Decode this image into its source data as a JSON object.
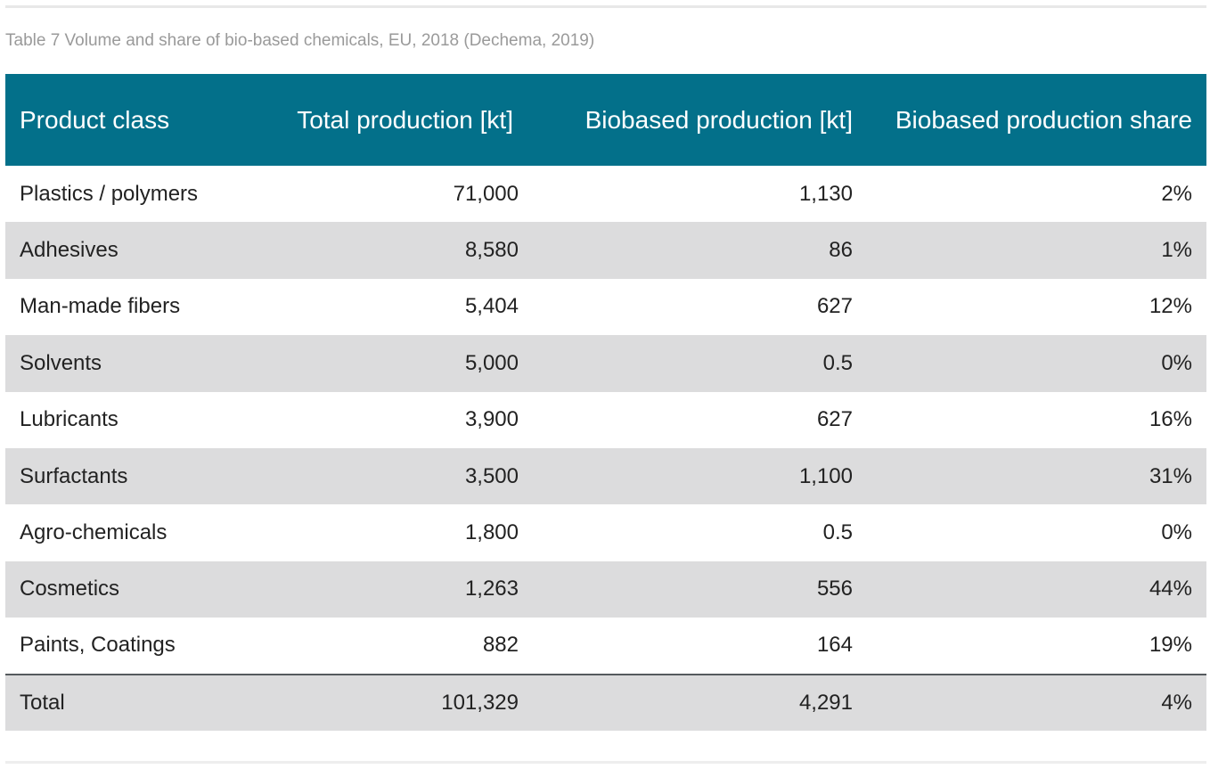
{
  "caption": "Table 7 Volume and share of bio-based chemicals, EU, 2018 (Dechema, 2019)",
  "table": {
    "headers": [
      "Product class",
      "Total production [kt]",
      "Biobased production [kt]",
      "Biobased production share"
    ],
    "rows": [
      [
        "Plastics / polymers",
        "71,000",
        "1,130",
        "2%"
      ],
      [
        "Adhesives",
        "8,580",
        "86",
        "1%"
      ],
      [
        "Man-made fibers",
        "5,404",
        "627",
        "12%"
      ],
      [
        "Solvents",
        "5,000",
        "0.5",
        "0%"
      ],
      [
        "Lubricants",
        "3,900",
        "627",
        "16%"
      ],
      [
        "Surfactants",
        "3,500",
        "1,100",
        "31%"
      ],
      [
        "Agro-chemicals",
        "1,800",
        "0.5",
        "0%"
      ],
      [
        "Cosmetics",
        "1,263",
        "556",
        "44%"
      ],
      [
        "Paints, Coatings",
        "882",
        "164",
        "19%"
      ]
    ],
    "total": [
      "Total",
      "101,329",
      "4,291",
      "4%"
    ]
  },
  "colors": {
    "header_bg": "#03708a",
    "stripe_bg": "#dcdcdd",
    "caption_text": "#9a9a9a"
  }
}
